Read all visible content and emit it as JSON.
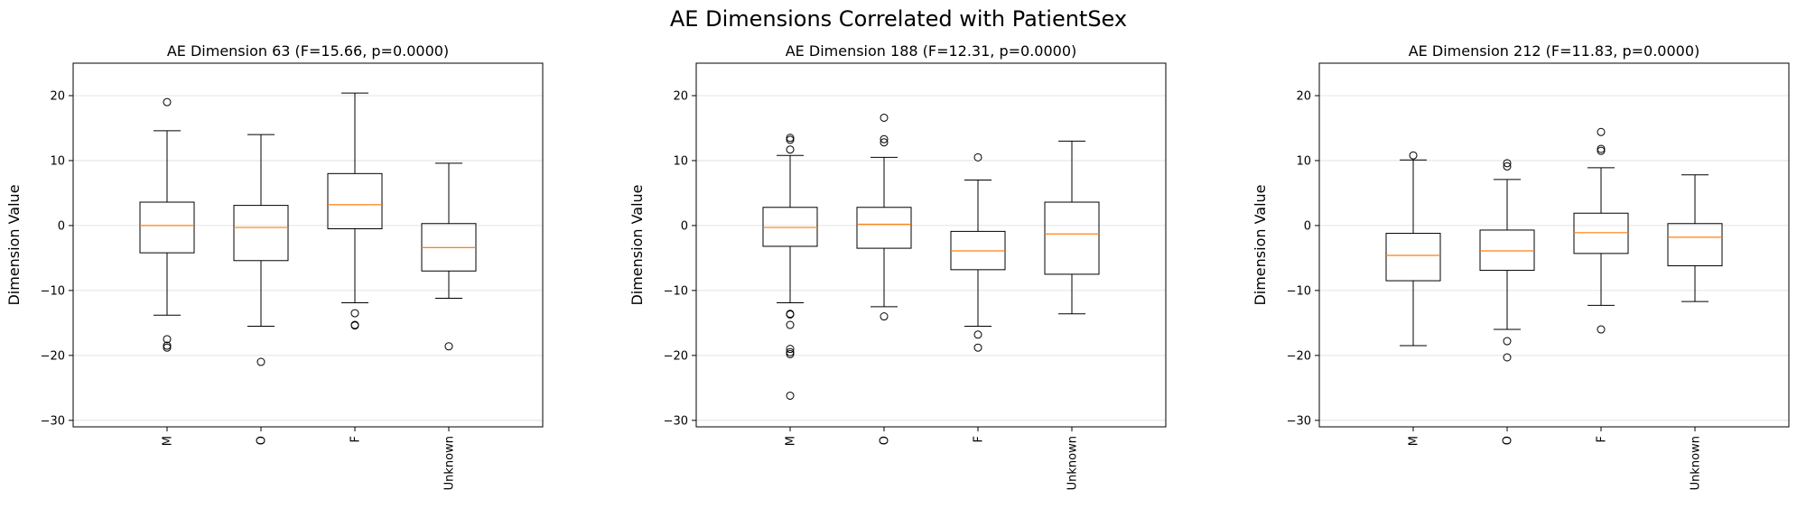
{
  "figure": {
    "title": "AE Dimensions Correlated with PatientSex"
  },
  "chart_data": [
    {
      "type": "box",
      "title": "AE Dimension 63 (F=15.66, p=0.0000)",
      "xlabel": "",
      "ylabel": "Dimension Value",
      "ylim": [
        -31,
        25
      ],
      "yticks": [
        -30,
        -20,
        -10,
        0,
        10,
        20
      ],
      "grid": "y",
      "categories": [
        "M",
        "O",
        "F",
        "Unknown"
      ],
      "boxes": [
        {
          "category": "M",
          "whisker_low": -13.8,
          "q1": -4.2,
          "median": 0.0,
          "q3": 3.6,
          "whisker_high": 14.6,
          "outliers": [
            19.0,
            -17.5,
            -18.5,
            -18.8
          ]
        },
        {
          "category": "O",
          "whisker_low": -15.5,
          "q1": -5.4,
          "median": -0.3,
          "q3": 3.1,
          "whisker_high": 14.0,
          "outliers": [
            -21.0
          ]
        },
        {
          "category": "F",
          "whisker_low": -11.9,
          "q1": -0.5,
          "median": 3.2,
          "q3": 8.0,
          "whisker_high": 20.4,
          "outliers": [
            -13.5,
            -15.3,
            -15.4
          ]
        },
        {
          "category": "Unknown",
          "whisker_low": -11.2,
          "q1": -7.0,
          "median": -3.4,
          "q3": 0.3,
          "whisker_high": 9.6,
          "outliers": [
            -18.6
          ]
        }
      ]
    },
    {
      "type": "box",
      "title": "AE Dimension 188 (F=12.31, p=0.0000)",
      "xlabel": "",
      "ylabel": "Dimension Value",
      "ylim": [
        -31,
        25
      ],
      "yticks": [
        -30,
        -20,
        -10,
        0,
        10,
        20
      ],
      "grid": "y",
      "categories": [
        "M",
        "O",
        "F",
        "Unknown"
      ],
      "boxes": [
        {
          "category": "M",
          "whisker_low": -11.9,
          "q1": -3.2,
          "median": -0.3,
          "q3": 2.8,
          "whisker_high": 10.8,
          "outliers": [
            13.5,
            13.2,
            11.7,
            -13.6,
            -13.7,
            -15.3,
            -19.0,
            -19.5,
            -19.8,
            -26.2
          ]
        },
        {
          "category": "O",
          "whisker_low": -12.5,
          "q1": -3.5,
          "median": 0.2,
          "q3": 2.8,
          "whisker_high": 10.5,
          "outliers": [
            16.6,
            13.3,
            12.8,
            -14.0
          ]
        },
        {
          "category": "F",
          "whisker_low": -15.5,
          "q1": -6.8,
          "median": -3.9,
          "q3": -0.9,
          "whisker_high": 7.0,
          "outliers": [
            10.5,
            -16.8,
            -18.8
          ]
        },
        {
          "category": "Unknown",
          "whisker_low": -13.6,
          "q1": -7.5,
          "median": -1.3,
          "q3": 3.6,
          "whisker_high": 13.0,
          "outliers": []
        }
      ]
    },
    {
      "type": "box",
      "title": "AE Dimension 212 (F=11.83, p=0.0000)",
      "xlabel": "",
      "ylabel": "Dimension Value",
      "ylim": [
        -31,
        25
      ],
      "yticks": [
        -30,
        -20,
        -10,
        0,
        10,
        20
      ],
      "grid": "y",
      "categories": [
        "M",
        "O",
        "F",
        "Unknown"
      ],
      "boxes": [
        {
          "category": "M",
          "whisker_low": -18.5,
          "q1": -8.5,
          "median": -4.6,
          "q3": -1.2,
          "whisker_high": 10.1,
          "outliers": [
            10.8
          ]
        },
        {
          "category": "O",
          "whisker_low": -16.0,
          "q1": -6.9,
          "median": -3.9,
          "q3": -0.7,
          "whisker_high": 7.1,
          "outliers": [
            9.6,
            9.1,
            -17.8,
            -20.3
          ]
        },
        {
          "category": "F",
          "whisker_low": -12.3,
          "q1": -4.3,
          "median": -1.1,
          "q3": 1.9,
          "whisker_high": 8.9,
          "outliers": [
            14.4,
            11.8,
            11.5,
            -16.0
          ]
        },
        {
          "category": "Unknown",
          "whisker_low": -11.7,
          "q1": -6.2,
          "median": -1.8,
          "q3": 0.3,
          "whisker_high": 7.8,
          "outliers": []
        }
      ]
    }
  ]
}
